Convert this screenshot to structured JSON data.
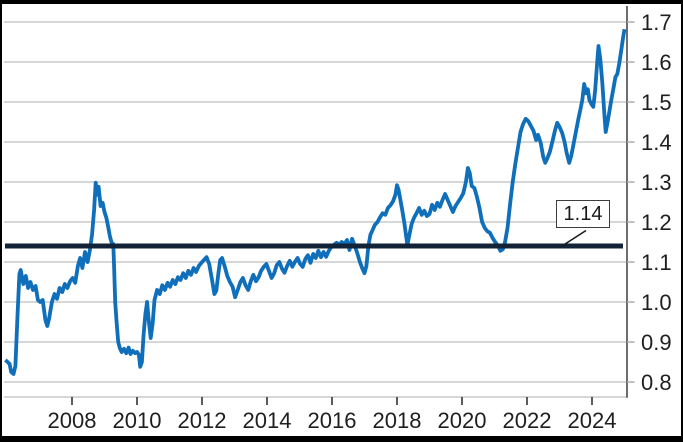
{
  "chart_data": {
    "type": "line",
    "title": "",
    "xlabel": "",
    "ylabel": "",
    "axis_side": "right",
    "grid": true,
    "legend_position": "none",
    "x_range": [
      2005.9,
      2025.1
    ],
    "ylim": [
      0.76,
      1.74
    ],
    "x_ticks": [
      {
        "year": 2008,
        "label": "2008"
      },
      {
        "year": 2010,
        "label": "2010"
      },
      {
        "year": 2012,
        "label": "2012"
      },
      {
        "year": 2014,
        "label": "2014"
      },
      {
        "year": 2016,
        "label": "2016"
      },
      {
        "year": 2018,
        "label": "2018"
      },
      {
        "year": 2020,
        "label": "2020"
      },
      {
        "year": 2022,
        "label": "2022"
      },
      {
        "year": 2024,
        "label": "2024"
      }
    ],
    "y_ticks": [
      {
        "value": 0.8,
        "label": "0.8"
      },
      {
        "value": 0.9,
        "label": "0.9"
      },
      {
        "value": 1.0,
        "label": "1.0"
      },
      {
        "value": 1.1,
        "label": "1.1"
      },
      {
        "value": 1.2,
        "label": "1.2"
      },
      {
        "value": 1.3,
        "label": "1.3"
      },
      {
        "value": 1.4,
        "label": "1.4"
      },
      {
        "value": 1.5,
        "label": "1.5"
      },
      {
        "value": 1.6,
        "label": "1.6"
      },
      {
        "value": 1.7,
        "label": "1.7"
      }
    ],
    "reference_line": {
      "value": 1.14,
      "label": "1.14",
      "color": "#122338"
    },
    "colors": {
      "series": "#106fba",
      "reference": "#122338",
      "gridline": "#cacaca",
      "right_spine": "#4a4a4a",
      "tick_dark": "#333333",
      "tick_light": "#a8a8a8",
      "label_text": "#1f1f1f",
      "frame": "#000000",
      "background": "#ffffff"
    },
    "series": [
      {
        "name": "main-series",
        "points": [
          [
            2005.95,
            0.855
          ],
          [
            2006.02,
            0.85
          ],
          [
            2006.08,
            0.845
          ],
          [
            2006.13,
            0.825
          ],
          [
            2006.2,
            0.82
          ],
          [
            2006.26,
            0.84
          ],
          [
            2006.32,
            0.96
          ],
          [
            2006.38,
            1.07
          ],
          [
            2006.42,
            1.08
          ],
          [
            2006.5,
            1.045
          ],
          [
            2006.58,
            1.065
          ],
          [
            2006.65,
            1.035
          ],
          [
            2006.72,
            1.05
          ],
          [
            2006.8,
            1.03
          ],
          [
            2006.88,
            1.04
          ],
          [
            2006.95,
            1.005
          ],
          [
            2007.02,
            1.0
          ],
          [
            2007.1,
            1.005
          ],
          [
            2007.18,
            0.955
          ],
          [
            2007.24,
            0.94
          ],
          [
            2007.3,
            0.96
          ],
          [
            2007.38,
            1.0
          ],
          [
            2007.46,
            1.02
          ],
          [
            2007.54,
            1.008
          ],
          [
            2007.62,
            1.035
          ],
          [
            2007.7,
            1.025
          ],
          [
            2007.78,
            1.045
          ],
          [
            2007.86,
            1.035
          ],
          [
            2007.94,
            1.052
          ],
          [
            2008.02,
            1.06
          ],
          [
            2008.1,
            1.048
          ],
          [
            2008.18,
            1.09
          ],
          [
            2008.25,
            1.11
          ],
          [
            2008.32,
            1.085
          ],
          [
            2008.4,
            1.125
          ],
          [
            2008.48,
            1.1
          ],
          [
            2008.55,
            1.13
          ],
          [
            2008.62,
            1.17
          ],
          [
            2008.68,
            1.23
          ],
          [
            2008.73,
            1.298
          ],
          [
            2008.78,
            1.268
          ],
          [
            2008.82,
            1.288
          ],
          [
            2008.88,
            1.24
          ],
          [
            2008.94,
            1.248
          ],
          [
            2009.0,
            1.225
          ],
          [
            2009.06,
            1.21
          ],
          [
            2009.12,
            1.185
          ],
          [
            2009.17,
            1.163
          ],
          [
            2009.22,
            1.148
          ],
          [
            2009.27,
            1.145
          ],
          [
            2009.3,
            1.08
          ],
          [
            2009.33,
            1.0
          ],
          [
            2009.37,
            0.953
          ],
          [
            2009.42,
            0.9
          ],
          [
            2009.47,
            0.885
          ],
          [
            2009.53,
            0.875
          ],
          [
            2009.6,
            0.883
          ],
          [
            2009.67,
            0.872
          ],
          [
            2009.74,
            0.886
          ],
          [
            2009.8,
            0.87
          ],
          [
            2009.87,
            0.878
          ],
          [
            2009.94,
            0.872
          ],
          [
            2010.0,
            0.875
          ],
          [
            2010.06,
            0.868
          ],
          [
            2010.1,
            0.838
          ],
          [
            2010.15,
            0.85
          ],
          [
            2010.2,
            0.915
          ],
          [
            2010.26,
            0.97
          ],
          [
            2010.31,
            1.0
          ],
          [
            2010.36,
            0.955
          ],
          [
            2010.42,
            0.91
          ],
          [
            2010.48,
            0.945
          ],
          [
            2010.54,
            1.005
          ],
          [
            2010.62,
            1.03
          ],
          [
            2010.7,
            1.02
          ],
          [
            2010.78,
            1.042
          ],
          [
            2010.86,
            1.03
          ],
          [
            2010.94,
            1.048
          ],
          [
            2011.02,
            1.038
          ],
          [
            2011.1,
            1.055
          ],
          [
            2011.18,
            1.045
          ],
          [
            2011.26,
            1.062
          ],
          [
            2011.34,
            1.055
          ],
          [
            2011.42,
            1.072
          ],
          [
            2011.5,
            1.06
          ],
          [
            2011.58,
            1.078
          ],
          [
            2011.66,
            1.068
          ],
          [
            2011.74,
            1.085
          ],
          [
            2011.82,
            1.075
          ],
          [
            2011.9,
            1.09
          ],
          [
            2011.98,
            1.098
          ],
          [
            2012.06,
            1.105
          ],
          [
            2012.14,
            1.112
          ],
          [
            2012.22,
            1.095
          ],
          [
            2012.3,
            1.06
          ],
          [
            2012.38,
            1.02
          ],
          [
            2012.44,
            1.028
          ],
          [
            2012.5,
            1.07
          ],
          [
            2012.56,
            1.105
          ],
          [
            2012.62,
            1.11
          ],
          [
            2012.7,
            1.088
          ],
          [
            2012.78,
            1.065
          ],
          [
            2012.86,
            1.05
          ],
          [
            2012.94,
            1.038
          ],
          [
            2013.02,
            1.012
          ],
          [
            2013.1,
            1.03
          ],
          [
            2013.18,
            1.05
          ],
          [
            2013.26,
            1.06
          ],
          [
            2013.34,
            1.042
          ],
          [
            2013.42,
            1.03
          ],
          [
            2013.5,
            1.052
          ],
          [
            2013.58,
            1.068
          ],
          [
            2013.66,
            1.052
          ],
          [
            2013.74,
            1.062
          ],
          [
            2013.82,
            1.078
          ],
          [
            2013.9,
            1.088
          ],
          [
            2013.98,
            1.095
          ],
          [
            2014.06,
            1.078
          ],
          [
            2014.14,
            1.06
          ],
          [
            2014.22,
            1.072
          ],
          [
            2014.3,
            1.092
          ],
          [
            2014.38,
            1.1
          ],
          [
            2014.46,
            1.083
          ],
          [
            2014.54,
            1.073
          ],
          [
            2014.62,
            1.09
          ],
          [
            2014.7,
            1.103
          ],
          [
            2014.78,
            1.088
          ],
          [
            2014.86,
            1.1
          ],
          [
            2014.94,
            1.11
          ],
          [
            2015.02,
            1.095
          ],
          [
            2015.1,
            1.088
          ],
          [
            2015.18,
            1.108
          ],
          [
            2015.26,
            1.117
          ],
          [
            2015.34,
            1.098
          ],
          [
            2015.42,
            1.12
          ],
          [
            2015.5,
            1.11
          ],
          [
            2015.58,
            1.128
          ],
          [
            2015.66,
            1.112
          ],
          [
            2015.74,
            1.125
          ],
          [
            2015.82,
            1.113
          ],
          [
            2015.9,
            1.128
          ],
          [
            2015.98,
            1.138
          ],
          [
            2016.06,
            1.143
          ],
          [
            2016.14,
            1.148
          ],
          [
            2016.22,
            1.143
          ],
          [
            2016.3,
            1.15
          ],
          [
            2016.38,
            1.145
          ],
          [
            2016.46,
            1.155
          ],
          [
            2016.54,
            1.13
          ],
          [
            2016.62,
            1.158
          ],
          [
            2016.7,
            1.14
          ],
          [
            2016.78,
            1.122
          ],
          [
            2016.86,
            1.1
          ],
          [
            2016.94,
            1.082
          ],
          [
            2017.0,
            1.072
          ],
          [
            2017.06,
            1.09
          ],
          [
            2017.12,
            1.14
          ],
          [
            2017.18,
            1.168
          ],
          [
            2017.25,
            1.18
          ],
          [
            2017.32,
            1.193
          ],
          [
            2017.4,
            1.2
          ],
          [
            2017.48,
            1.212
          ],
          [
            2017.56,
            1.222
          ],
          [
            2017.64,
            1.218
          ],
          [
            2017.72,
            1.235
          ],
          [
            2017.8,
            1.242
          ],
          [
            2017.88,
            1.252
          ],
          [
            2017.95,
            1.268
          ],
          [
            2018.0,
            1.292
          ],
          [
            2018.05,
            1.28
          ],
          [
            2018.1,
            1.258
          ],
          [
            2018.16,
            1.23
          ],
          [
            2018.22,
            1.2
          ],
          [
            2018.28,
            1.165
          ],
          [
            2018.32,
            1.142
          ],
          [
            2018.38,
            1.168
          ],
          [
            2018.45,
            1.195
          ],
          [
            2018.52,
            1.21
          ],
          [
            2018.6,
            1.222
          ],
          [
            2018.68,
            1.235
          ],
          [
            2018.76,
            1.218
          ],
          [
            2018.84,
            1.228
          ],
          [
            2018.92,
            1.215
          ],
          [
            2019.0,
            1.22
          ],
          [
            2019.08,
            1.243
          ],
          [
            2019.16,
            1.23
          ],
          [
            2019.24,
            1.248
          ],
          [
            2019.32,
            1.238
          ],
          [
            2019.4,
            1.255
          ],
          [
            2019.48,
            1.27
          ],
          [
            2019.56,
            1.255
          ],
          [
            2019.64,
            1.24
          ],
          [
            2019.72,
            1.225
          ],
          [
            2019.8,
            1.24
          ],
          [
            2019.88,
            1.25
          ],
          [
            2019.96,
            1.26
          ],
          [
            2020.04,
            1.272
          ],
          [
            2020.12,
            1.3
          ],
          [
            2020.18,
            1.335
          ],
          [
            2020.24,
            1.322
          ],
          [
            2020.3,
            1.29
          ],
          [
            2020.38,
            1.285
          ],
          [
            2020.46,
            1.262
          ],
          [
            2020.54,
            1.235
          ],
          [
            2020.62,
            1.2
          ],
          [
            2020.7,
            1.185
          ],
          [
            2020.78,
            1.177
          ],
          [
            2020.86,
            1.173
          ],
          [
            2020.94,
            1.16
          ],
          [
            2021.02,
            1.15
          ],
          [
            2021.1,
            1.142
          ],
          [
            2021.18,
            1.128
          ],
          [
            2021.26,
            1.132
          ],
          [
            2021.32,
            1.148
          ],
          [
            2021.4,
            1.185
          ],
          [
            2021.48,
            1.245
          ],
          [
            2021.56,
            1.3
          ],
          [
            2021.64,
            1.345
          ],
          [
            2021.72,
            1.385
          ],
          [
            2021.8,
            1.425
          ],
          [
            2021.88,
            1.445
          ],
          [
            2021.96,
            1.458
          ],
          [
            2022.04,
            1.452
          ],
          [
            2022.12,
            1.44
          ],
          [
            2022.2,
            1.428
          ],
          [
            2022.28,
            1.405
          ],
          [
            2022.34,
            1.418
          ],
          [
            2022.42,
            1.398
          ],
          [
            2022.5,
            1.362
          ],
          [
            2022.56,
            1.348
          ],
          [
            2022.62,
            1.358
          ],
          [
            2022.7,
            1.375
          ],
          [
            2022.78,
            1.4
          ],
          [
            2022.86,
            1.428
          ],
          [
            2022.93,
            1.448
          ],
          [
            2023.0,
            1.438
          ],
          [
            2023.08,
            1.423
          ],
          [
            2023.15,
            1.402
          ],
          [
            2023.22,
            1.372
          ],
          [
            2023.3,
            1.348
          ],
          [
            2023.36,
            1.365
          ],
          [
            2023.44,
            1.398
          ],
          [
            2023.52,
            1.432
          ],
          [
            2023.58,
            1.457
          ],
          [
            2023.64,
            1.48
          ],
          [
            2023.7,
            1.505
          ],
          [
            2023.76,
            1.545
          ],
          [
            2023.82,
            1.522
          ],
          [
            2023.87,
            1.532
          ],
          [
            2023.92,
            1.505
          ],
          [
            2023.98,
            1.495
          ],
          [
            2024.04,
            1.488
          ],
          [
            2024.1,
            1.53
          ],
          [
            2024.16,
            1.6
          ],
          [
            2024.2,
            1.64
          ],
          [
            2024.26,
            1.605
          ],
          [
            2024.32,
            1.545
          ],
          [
            2024.38,
            1.468
          ],
          [
            2024.42,
            1.425
          ],
          [
            2024.48,
            1.45
          ],
          [
            2024.54,
            1.478
          ],
          [
            2024.6,
            1.508
          ],
          [
            2024.66,
            1.535
          ],
          [
            2024.72,
            1.562
          ],
          [
            2024.78,
            1.57
          ],
          [
            2024.84,
            1.597
          ],
          [
            2024.9,
            1.63
          ],
          [
            2024.96,
            1.663
          ],
          [
            2025.0,
            1.682
          ]
        ]
      }
    ]
  }
}
